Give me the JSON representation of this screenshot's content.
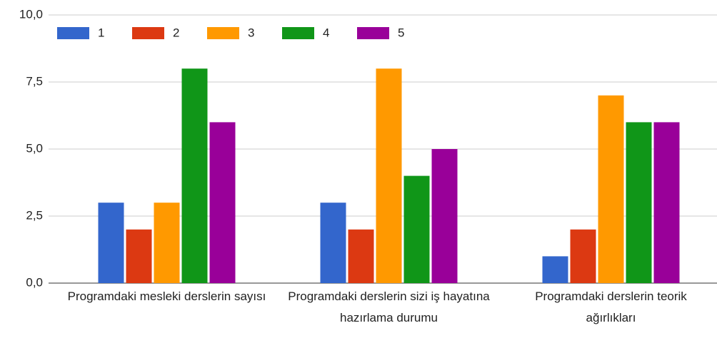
{
  "chart_data": {
    "type": "bar",
    "categories": [
      "Programdaki mesleki derslerin sayısı",
      "Programdaki derslerin sizi iş hayatına hazırlama durumu",
      "Programdaki derslerin teorik ağırlıkları"
    ],
    "series": [
      {
        "name": "1",
        "color": "#3366cc",
        "values": [
          3,
          3,
          1
        ]
      },
      {
        "name": "2",
        "color": "#dc3912",
        "values": [
          2,
          2,
          2
        ]
      },
      {
        "name": "3",
        "color": "#ff9900",
        "values": [
          3,
          8,
          7
        ]
      },
      {
        "name": "4",
        "color": "#109618",
        "values": [
          8,
          4,
          6
        ]
      },
      {
        "name": "5",
        "color": "#990099",
        "values": [
          6,
          5,
          6
        ]
      }
    ],
    "ylim": [
      0,
      10
    ],
    "yticks": [
      {
        "value": 0,
        "label": "0,0"
      },
      {
        "value": 2.5,
        "label": "2,5"
      },
      {
        "value": 5,
        "label": "5,0"
      },
      {
        "value": 7.5,
        "label": "7,5"
      },
      {
        "value": 10,
        "label": "10,0"
      }
    ],
    "grid": true,
    "legend": "top"
  }
}
